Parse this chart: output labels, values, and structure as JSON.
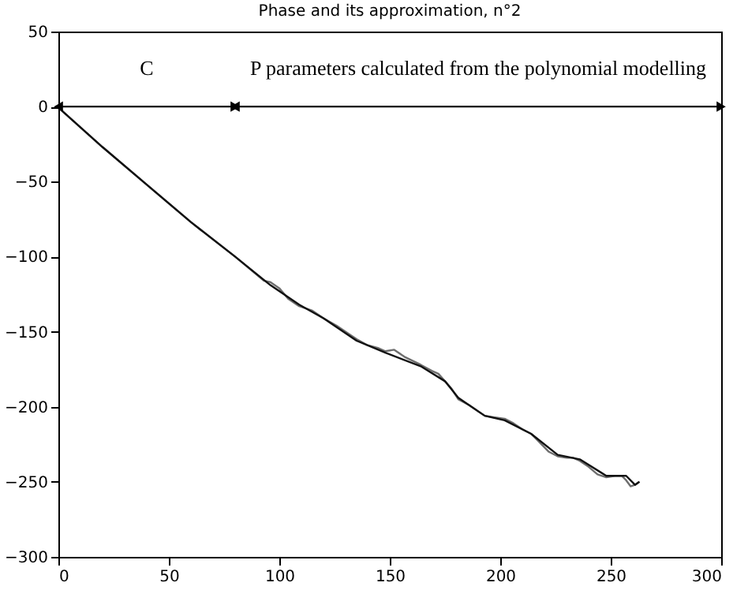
{
  "chart_data": {
    "type": "line",
    "title": "Phase and its approximation, n°2",
    "xlim": [
      0,
      300
    ],
    "xticks": [
      0,
      50,
      100,
      150,
      200,
      250,
      300
    ],
    "ylim": [
      -300,
      50
    ],
    "yticks": [
      -300,
      -250,
      -200,
      -150,
      -100,
      -50,
      0,
      50
    ],
    "grid": false,
    "series": [
      {
        "color": "#6e6e6e",
        "x": [
          1,
          20,
          40,
          60,
          80,
          93,
          96,
          100,
          104,
          109,
          115,
          120,
          126,
          131,
          135,
          140,
          145,
          148,
          152,
          157,
          164,
          169,
          172,
          175,
          178,
          181,
          186,
          190,
          193,
          197,
          202,
          206,
          210,
          214,
          218,
          222,
          226,
          230,
          233,
          236,
          240,
          244,
          248,
          252,
          255,
          257,
          259,
          261,
          263
        ],
        "values": [
          -2,
          -27,
          -52,
          -77,
          -100,
          -116,
          -117,
          -121,
          -128,
          -133,
          -136,
          -141,
          -146,
          -151,
          -155,
          -159,
          -161,
          -163,
          -162,
          -167,
          -172,
          -176,
          -178,
          -183,
          -188,
          -195,
          -199,
          -203,
          -206,
          -207,
          -208,
          -211,
          -215,
          -218,
          -224,
          -230,
          -233,
          -234,
          -234,
          -236,
          -240,
          -245,
          -247,
          -246,
          -246,
          -249,
          -253,
          -252,
          -250
        ]
      },
      {
        "color": "#111111",
        "x": [
          1,
          20,
          40,
          60,
          80,
          96,
          109,
          120,
          135,
          148,
          164,
          175,
          181,
          193,
          202,
          214,
          226,
          236,
          248,
          257,
          261,
          263
        ],
        "values": [
          -2,
          -27,
          -52,
          -77,
          -100,
          -119,
          -132,
          -141,
          -156,
          -164,
          -173,
          -183,
          -194,
          -206,
          -209,
          -218,
          -232,
          -235,
          -246,
          -246,
          -252,
          -250
        ]
      },
      {
        "color": "#000000",
        "marker": "triangle",
        "x": [
          0,
          80
        ],
        "values": [
          0,
          0
        ]
      },
      {
        "color": "#000000",
        "marker": "triangle",
        "x": [
          80,
          300
        ],
        "values": [
          0,
          0
        ]
      }
    ],
    "annotations": [
      "C",
      "P parameters calculated from the polynomial modelling"
    ]
  }
}
